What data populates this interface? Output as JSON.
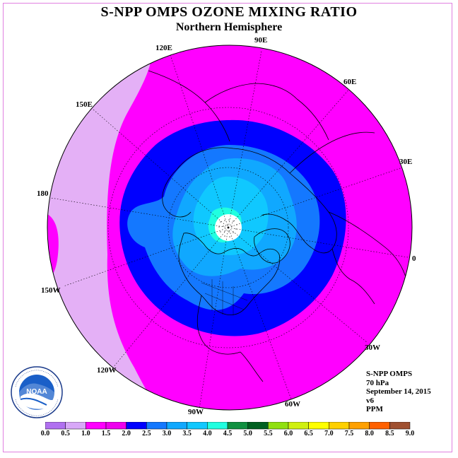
{
  "title": "S-NPP OMPS OZONE MIXING RATIO",
  "subtitle": "Northern Hemisphere",
  "longitude_labels": {
    "lon_120e": "120E",
    "lon_90e": "90E",
    "lon_60e": "60E",
    "lon_30e": "30E",
    "lon_0": "0",
    "lon_30w": "30W",
    "lon_60w": "60W",
    "lon_90w": "90W",
    "lon_120w": "120W",
    "lon_150w": "150W",
    "lon_180": "180",
    "lon_150e": "150E"
  },
  "info": {
    "instrument": "S-NPP OMPS",
    "level": "70 hPa",
    "date": "September 14, 2015",
    "version": "v6",
    "units": "PPM"
  },
  "scale": {
    "ticks": [
      "0.0",
      "0.5",
      "1.0",
      "1.5",
      "2.0",
      "2.5",
      "3.0",
      "3.5",
      "4.0",
      "4.5",
      "5.0",
      "5.5",
      "6.0",
      "6.5",
      "7.0",
      "7.5",
      "8.0",
      "8.5",
      "9.0"
    ],
    "colors": [
      "#b070f0",
      "#d8a8f8",
      "#ff00ff",
      "#ee00ee",
      "#0000ff",
      "#1478ff",
      "#10a8ff",
      "#10c8ff",
      "#20ffe0",
      "#109040",
      "#006020",
      "#90e010",
      "#d0f010",
      "#ffff00",
      "#ffd000",
      "#ffa000",
      "#ff6000",
      "#ff0000",
      "#a05030"
    ]
  },
  "logo": {
    "name": "NOAA"
  },
  "map_colors": {
    "background_band": "#e4b0f6",
    "main": "#ff00ff",
    "ring_outer": "#0000ff",
    "ring_1": "#1478ff",
    "ring_2": "#10a8ff",
    "ring_3": "#10c8ff",
    "core": "#20ffe0",
    "polar_hole": "#ffffff"
  }
}
